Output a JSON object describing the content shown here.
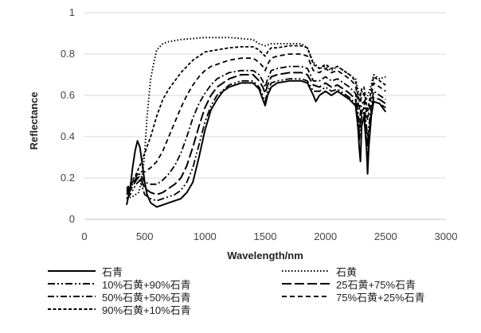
{
  "chart_data": {
    "type": "line",
    "xlabel": "Wavelength/nm",
    "ylabel": "Reflectance",
    "xlim": [
      0,
      3000
    ],
    "ylim": [
      0,
      1
    ],
    "xticks": [
      "0",
      "500",
      "1000",
      "1500",
      "2000",
      "2500",
      "3000"
    ],
    "yticks": [
      "0",
      "0.2",
      "0.4",
      "0.6",
      "0.8",
      "1"
    ],
    "grid": "horizontal",
    "legend_position": "bottom",
    "series": [
      {
        "name": "石青",
        "dash": "solid",
        "x": [
          350,
          380,
          400,
          420,
          440,
          460,
          480,
          500,
          520,
          550,
          600,
          650,
          700,
          750,
          800,
          850,
          900,
          950,
          1000,
          1050,
          1100,
          1150,
          1200,
          1300,
          1400,
          1450,
          1480,
          1500,
          1520,
          1550,
          1600,
          1700,
          1800,
          1850,
          1900,
          1920,
          1950,
          2000,
          2050,
          2100,
          2150,
          2200,
          2250,
          2270,
          2280,
          2290,
          2300,
          2320,
          2340,
          2350,
          2360,
          2380,
          2400,
          2450,
          2500
        ],
        "y": [
          0.07,
          0.15,
          0.25,
          0.33,
          0.38,
          0.35,
          0.27,
          0.18,
          0.12,
          0.08,
          0.06,
          0.07,
          0.08,
          0.09,
          0.1,
          0.13,
          0.18,
          0.3,
          0.43,
          0.53,
          0.58,
          0.62,
          0.64,
          0.66,
          0.66,
          0.63,
          0.58,
          0.55,
          0.6,
          0.64,
          0.66,
          0.67,
          0.67,
          0.66,
          0.6,
          0.57,
          0.6,
          0.62,
          0.6,
          0.62,
          0.6,
          0.58,
          0.55,
          0.45,
          0.35,
          0.28,
          0.45,
          0.5,
          0.35,
          0.22,
          0.35,
          0.5,
          0.57,
          0.56,
          0.52
        ]
      },
      {
        "name": "石黄",
        "dash": "dotted",
        "x": [
          350,
          400,
          450,
          480,
          500,
          520,
          550,
          580,
          600,
          650,
          700,
          750,
          800,
          900,
          1000,
          1100,
          1200,
          1300,
          1400,
          1450,
          1500,
          1550,
          1600,
          1700,
          1800,
          1850,
          1900,
          1950,
          2000,
          2050,
          2100,
          2150,
          2200,
          2250,
          2280,
          2300,
          2340,
          2380,
          2400,
          2450,
          2500
        ],
        "y": [
          0.1,
          0.11,
          0.13,
          0.2,
          0.32,
          0.5,
          0.68,
          0.77,
          0.82,
          0.85,
          0.86,
          0.865,
          0.87,
          0.875,
          0.88,
          0.88,
          0.88,
          0.875,
          0.87,
          0.85,
          0.84,
          0.85,
          0.85,
          0.85,
          0.85,
          0.83,
          0.76,
          0.73,
          0.74,
          0.72,
          0.74,
          0.72,
          0.7,
          0.68,
          0.6,
          0.62,
          0.58,
          0.65,
          0.7,
          0.68,
          0.69
        ]
      },
      {
        "name": "10%石黄+90%石青",
        "dash": "dashdotdot",
        "x": [
          350,
          380,
          400,
          430,
          460,
          500,
          550,
          600,
          650,
          700,
          750,
          800,
          850,
          900,
          950,
          1000,
          1050,
          1100,
          1200,
          1300,
          1400,
          1450,
          1480,
          1500,
          1520,
          1550,
          1600,
          1700,
          1800,
          1850,
          1900,
          1950,
          2000,
          2050,
          2100,
          2150,
          2200,
          2250,
          2280,
          2300,
          2320,
          2350,
          2380,
          2400,
          2450,
          2500
        ],
        "y": [
          0.1,
          0.12,
          0.14,
          0.17,
          0.19,
          0.12,
          0.1,
          0.09,
          0.1,
          0.11,
          0.12,
          0.14,
          0.18,
          0.25,
          0.36,
          0.47,
          0.55,
          0.6,
          0.65,
          0.67,
          0.67,
          0.64,
          0.6,
          0.57,
          0.62,
          0.66,
          0.67,
          0.68,
          0.68,
          0.67,
          0.62,
          0.62,
          0.64,
          0.62,
          0.63,
          0.61,
          0.59,
          0.56,
          0.38,
          0.5,
          0.52,
          0.3,
          0.5,
          0.57,
          0.56,
          0.54
        ]
      },
      {
        "name": "25石黄+75%石青",
        "dash": "longdash",
        "x": [
          350,
          380,
          400,
          430,
          460,
          500,
          550,
          600,
          650,
          700,
          750,
          800,
          850,
          900,
          950,
          1000,
          1050,
          1100,
          1200,
          1300,
          1400,
          1450,
          1480,
          1500,
          1520,
          1550,
          1600,
          1700,
          1800,
          1850,
          1900,
          1950,
          2000,
          2050,
          2100,
          2150,
          2200,
          2250,
          2280,
          2300,
          2320,
          2350,
          2380,
          2400,
          2450,
          2500
        ],
        "y": [
          0.12,
          0.14,
          0.16,
          0.19,
          0.21,
          0.15,
          0.13,
          0.12,
          0.13,
          0.15,
          0.17,
          0.2,
          0.26,
          0.35,
          0.45,
          0.54,
          0.6,
          0.64,
          0.68,
          0.7,
          0.7,
          0.67,
          0.64,
          0.61,
          0.65,
          0.69,
          0.7,
          0.71,
          0.71,
          0.7,
          0.65,
          0.64,
          0.66,
          0.64,
          0.65,
          0.63,
          0.61,
          0.58,
          0.42,
          0.52,
          0.54,
          0.35,
          0.52,
          0.59,
          0.58,
          0.56
        ]
      },
      {
        "name": "50%石黄+50%石青",
        "dash": "dashdot",
        "x": [
          350,
          380,
          400,
          430,
          460,
          500,
          550,
          600,
          650,
          700,
          750,
          800,
          850,
          900,
          950,
          1000,
          1050,
          1100,
          1200,
          1300,
          1400,
          1450,
          1480,
          1500,
          1520,
          1550,
          1600,
          1700,
          1800,
          1850,
          1900,
          1950,
          2000,
          2050,
          2100,
          2150,
          2200,
          2250,
          2280,
          2300,
          2320,
          2350,
          2380,
          2400,
          2450,
          2500
        ],
        "y": [
          0.13,
          0.15,
          0.17,
          0.2,
          0.22,
          0.18,
          0.17,
          0.17,
          0.19,
          0.22,
          0.26,
          0.32,
          0.4,
          0.49,
          0.56,
          0.61,
          0.65,
          0.68,
          0.71,
          0.72,
          0.72,
          0.7,
          0.67,
          0.64,
          0.68,
          0.72,
          0.73,
          0.74,
          0.74,
          0.73,
          0.67,
          0.67,
          0.69,
          0.67,
          0.68,
          0.66,
          0.64,
          0.61,
          0.47,
          0.56,
          0.57,
          0.4,
          0.55,
          0.62,
          0.6,
          0.58
        ]
      },
      {
        "name": "75%石黄+25%石青",
        "dash": "dashed",
        "x": [
          350,
          380,
          400,
          430,
          460,
          500,
          550,
          600,
          650,
          700,
          750,
          800,
          850,
          900,
          950,
          1000,
          1050,
          1100,
          1200,
          1300,
          1400,
          1450,
          1480,
          1500,
          1520,
          1550,
          1600,
          1700,
          1800,
          1850,
          1900,
          1950,
          2000,
          2050,
          2100,
          2150,
          2200,
          2250,
          2280,
          2300,
          2320,
          2350,
          2380,
          2400,
          2450,
          2500
        ],
        "y": [
          0.14,
          0.16,
          0.18,
          0.21,
          0.23,
          0.23,
          0.25,
          0.28,
          0.33,
          0.4,
          0.47,
          0.54,
          0.6,
          0.65,
          0.69,
          0.72,
          0.74,
          0.75,
          0.77,
          0.78,
          0.78,
          0.76,
          0.74,
          0.72,
          0.75,
          0.78,
          0.79,
          0.8,
          0.8,
          0.79,
          0.72,
          0.71,
          0.73,
          0.71,
          0.72,
          0.7,
          0.68,
          0.65,
          0.53,
          0.6,
          0.61,
          0.48,
          0.6,
          0.66,
          0.64,
          0.62
        ]
      },
      {
        "name": "90%石黄+10%石青",
        "dash": "densedash",
        "x": [
          350,
          380,
          400,
          430,
          460,
          500,
          550,
          600,
          650,
          700,
          750,
          800,
          850,
          900,
          950,
          1000,
          1100,
          1200,
          1300,
          1400,
          1450,
          1480,
          1500,
          1520,
          1550,
          1600,
          1700,
          1800,
          1850,
          1900,
          1950,
          2000,
          2050,
          2100,
          2150,
          2200,
          2250,
          2280,
          2300,
          2320,
          2350,
          2380,
          2400,
          2450,
          2500
        ],
        "y": [
          0.15,
          0.17,
          0.19,
          0.22,
          0.26,
          0.32,
          0.4,
          0.5,
          0.58,
          0.63,
          0.67,
          0.71,
          0.74,
          0.77,
          0.79,
          0.81,
          0.82,
          0.83,
          0.835,
          0.835,
          0.82,
          0.8,
          0.79,
          0.81,
          0.83,
          0.83,
          0.84,
          0.84,
          0.83,
          0.75,
          0.73,
          0.75,
          0.73,
          0.74,
          0.72,
          0.7,
          0.67,
          0.57,
          0.63,
          0.64,
          0.52,
          0.63,
          0.69,
          0.67,
          0.65
        ]
      }
    ]
  }
}
